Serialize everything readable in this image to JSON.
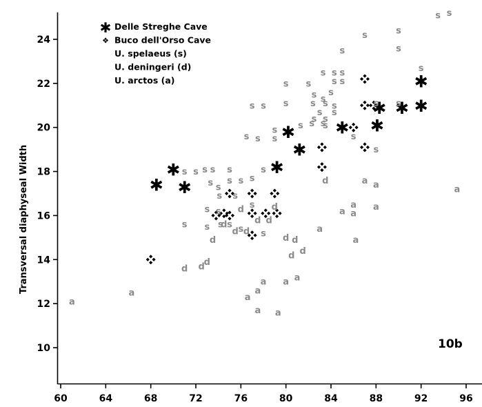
{
  "chart_data": {
    "type": "scatter",
    "title": "",
    "figure_label": "10b",
    "xlabel": "",
    "ylabel": "Transversal diaphyseal Width",
    "xlim": [
      60,
      98
    ],
    "ylim": [
      9,
      25.3
    ],
    "x_ticks": [
      60,
      64,
      68,
      72,
      76,
      80,
      84,
      88,
      92,
      96
    ],
    "y_ticks": [
      10,
      12,
      14,
      16,
      18,
      20,
      22,
      24
    ],
    "grid": false,
    "legend_position": "top-left",
    "legend": [
      {
        "marker": "✱",
        "label": "Delle Streghe Cave"
      },
      {
        "marker": "❖",
        "label": "Buco dell'Orso Cave"
      },
      {
        "marker": "",
        "label": "U. spelaeus (s)"
      },
      {
        "marker": "",
        "label": "U. deningeri (d)"
      },
      {
        "marker": "",
        "label": "U. arctos (a)"
      }
    ],
    "series": [
      {
        "name": "Delle Streghe Cave",
        "marker": "✱",
        "color": "#000000",
        "points": [
          [
            68.5,
            17.4
          ],
          [
            70,
            18.1
          ],
          [
            71,
            17.3
          ],
          [
            79.2,
            18.2
          ],
          [
            80.2,
            19.8
          ],
          [
            81.2,
            19.0
          ],
          [
            85,
            20.0
          ],
          [
            88.3,
            20.9
          ],
          [
            88.1,
            20.1
          ],
          [
            90.3,
            20.9
          ],
          [
            92,
            21.0
          ],
          [
            92,
            22.1
          ]
        ]
      },
      {
        "name": "Buco dell'Orso Cave",
        "marker": "❖",
        "color": "#000000",
        "points": [
          [
            68,
            14.0
          ],
          [
            73.8,
            16.0
          ],
          [
            74.5,
            16.1
          ],
          [
            75,
            17.0
          ],
          [
            75,
            16.0
          ],
          [
            77,
            17.0
          ],
          [
            77,
            16.1
          ],
          [
            77,
            15.1
          ],
          [
            78.2,
            16.1
          ],
          [
            79,
            17.0
          ],
          [
            79.2,
            16.1
          ],
          [
            83.2,
            19.1
          ],
          [
            83.2,
            18.2
          ],
          [
            86,
            20.0
          ],
          [
            87,
            22.2
          ],
          [
            87,
            21.0
          ],
          [
            87,
            19.1
          ],
          [
            87.8,
            21.0
          ]
        ]
      },
      {
        "name": "U. spelaeus (s)",
        "marker": "s",
        "color": "#8a8a8a",
        "points": [
          [
            93.5,
            25.1
          ],
          [
            94.5,
            25.2
          ],
          [
            87,
            24.2
          ],
          [
            90,
            24.4
          ],
          [
            90,
            23.6
          ],
          [
            85,
            23.5
          ],
          [
            84.3,
            22.5
          ],
          [
            85,
            22.5
          ],
          [
            83.3,
            22.5
          ],
          [
            84.3,
            22.1
          ],
          [
            80,
            22.0
          ],
          [
            82,
            22.0
          ],
          [
            85,
            22.1
          ],
          [
            92,
            22.7
          ],
          [
            82.5,
            21.5
          ],
          [
            84,
            21.6
          ],
          [
            83.3,
            21.3
          ],
          [
            88,
            21.1
          ],
          [
            90,
            21.1
          ],
          [
            77,
            21.0
          ],
          [
            78,
            21.0
          ],
          [
            80,
            21.1
          ],
          [
            82.4,
            21.1
          ],
          [
            83.5,
            21.1
          ],
          [
            84.3,
            21.0
          ],
          [
            83,
            20.7
          ],
          [
            84.3,
            20.7
          ],
          [
            82.5,
            20.4
          ],
          [
            83.5,
            20.4
          ],
          [
            81.3,
            20.1
          ],
          [
            82.3,
            20.2
          ],
          [
            83.3,
            20.2
          ],
          [
            83.5,
            20.1
          ],
          [
            79,
            19.9
          ],
          [
            76.5,
            19.6
          ],
          [
            77.5,
            19.5
          ],
          [
            79,
            19.5
          ],
          [
            86,
            19.6
          ],
          [
            88,
            19.0
          ],
          [
            71,
            18.0
          ],
          [
            72,
            18.0
          ],
          [
            72.8,
            18.1
          ],
          [
            73.5,
            18.1
          ],
          [
            75,
            18.1
          ],
          [
            78,
            18.1
          ],
          [
            73.3,
            17.5
          ],
          [
            74,
            17.3
          ],
          [
            75,
            17.6
          ],
          [
            76,
            17.6
          ],
          [
            77,
            17.7
          ],
          [
            74.1,
            16.9
          ],
          [
            75.5,
            16.9
          ],
          [
            77,
            16.5
          ],
          [
            73,
            16.3
          ],
          [
            74,
            16.2
          ],
          [
            71,
            15.6
          ],
          [
            73,
            15.5
          ],
          [
            74.2,
            15.6
          ],
          [
            75,
            15.6
          ],
          [
            76,
            15.4
          ],
          [
            78,
            15.2
          ]
        ]
      },
      {
        "name": "U. deningeri (d)",
        "marker": "d",
        "color": "#8a8a8a",
        "points": [
          [
            83.5,
            17.6
          ],
          [
            76,
            16.3
          ],
          [
            79,
            16.4
          ],
          [
            77.5,
            15.8
          ],
          [
            78.5,
            15.8
          ],
          [
            74.5,
            15.6
          ],
          [
            75.5,
            15.3
          ],
          [
            76.5,
            15.3
          ],
          [
            73.5,
            14.9
          ],
          [
            80,
            15.0
          ],
          [
            80.8,
            14.9
          ],
          [
            80.5,
            14.2
          ],
          [
            81.5,
            14.4
          ],
          [
            71,
            13.6
          ],
          [
            72.5,
            13.7
          ],
          [
            73,
            13.9
          ]
        ]
      },
      {
        "name": "U. arctos (a)",
        "marker": "a",
        "color": "#8a8a8a",
        "points": [
          [
            95.2,
            17.2
          ],
          [
            87,
            17.6
          ],
          [
            88,
            17.4
          ],
          [
            85,
            16.2
          ],
          [
            86,
            16.5
          ],
          [
            86,
            16.1
          ],
          [
            88,
            16.4
          ],
          [
            83,
            15.4
          ],
          [
            86.2,
            14.9
          ],
          [
            78,
            13.0
          ],
          [
            80,
            13.0
          ],
          [
            81,
            13.2
          ],
          [
            77.5,
            12.6
          ],
          [
            76.6,
            12.3
          ],
          [
            77.5,
            11.7
          ],
          [
            79.3,
            11.6
          ],
          [
            61,
            12.1
          ],
          [
            66.3,
            12.5
          ]
        ]
      }
    ]
  }
}
